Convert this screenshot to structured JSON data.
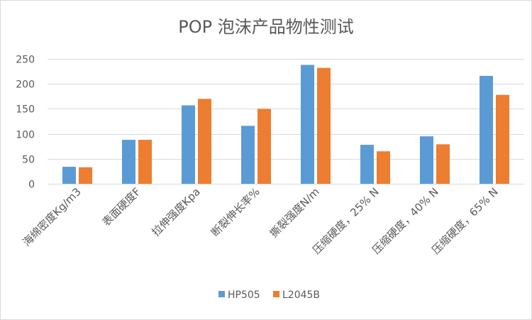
{
  "chart_data": {
    "type": "bar",
    "title": "POP 泡沫产品物性测试",
    "categories": [
      "海绵密度Kg/m3",
      "表面硬度F",
      "拉伸强度Kpa",
      "断裂伸长率%",
      "撕裂强度N/m",
      "压缩硬度，25% N",
      "压缩硬度，40% N",
      "压缩硬度，65% N"
    ],
    "series": [
      {
        "name": "HP505",
        "color": "#5b9bd5",
        "values": [
          34,
          88,
          157,
          116,
          238,
          78,
          95,
          216
        ]
      },
      {
        "name": "L2045B",
        "color": "#ed7d31",
        "values": [
          33,
          88,
          170,
          150,
          232,
          65,
          79,
          178
        ]
      }
    ],
    "yticks": [
      "0",
      "50",
      "100",
      "150",
      "200",
      "250"
    ],
    "ylim": [
      0,
      250
    ],
    "grid": true,
    "legend_position": "bottom"
  }
}
